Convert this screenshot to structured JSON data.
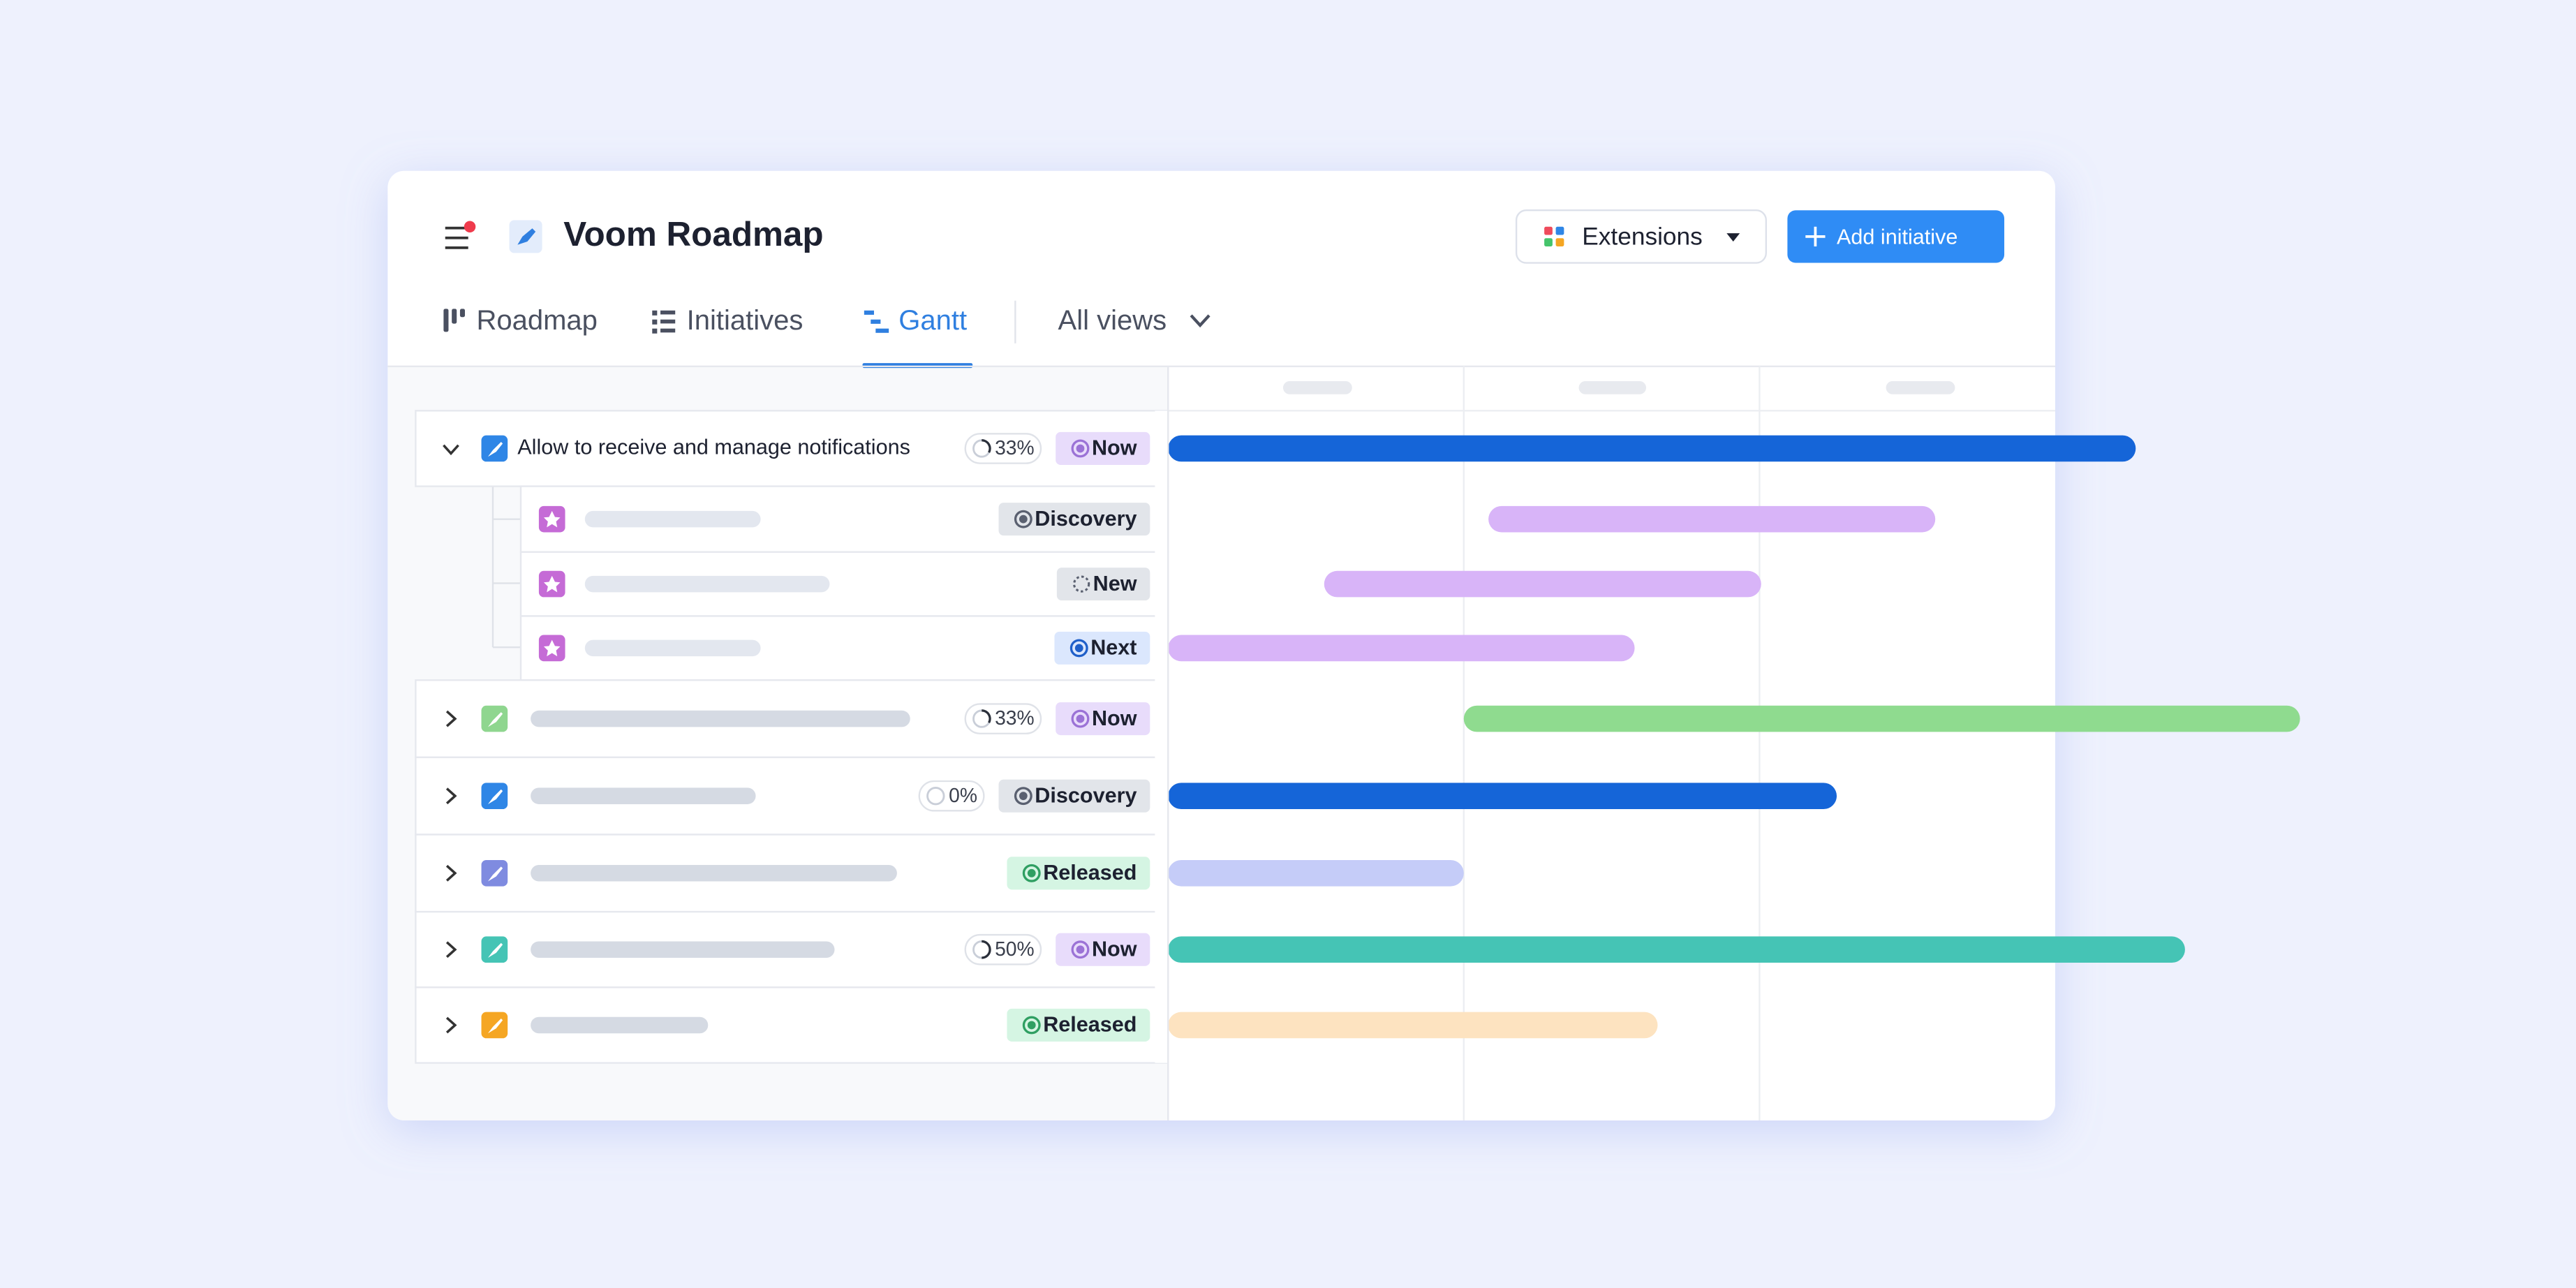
{
  "header": {
    "title": "Voom Roadmap",
    "extensions": "Extensions",
    "add_button": "Add initiative"
  },
  "tabs": [
    "Roadmap",
    "Initiatives",
    "Gantt"
  ],
  "all_views": "All views",
  "rows": [
    {
      "title": "Allow to receive and manage notifications",
      "progress": "33%",
      "status": "Now",
      "children": [
        {
          "status": "Discovery"
        },
        {
          "status": "New"
        },
        {
          "status": "Next"
        }
      ]
    },
    {
      "progress": "33%",
      "status": "Now"
    },
    {
      "progress": "0%",
      "status": "Discovery"
    },
    {
      "status": "Released"
    },
    {
      "progress": "50%",
      "status": "Now"
    },
    {
      "status": "Released"
    }
  ]
}
